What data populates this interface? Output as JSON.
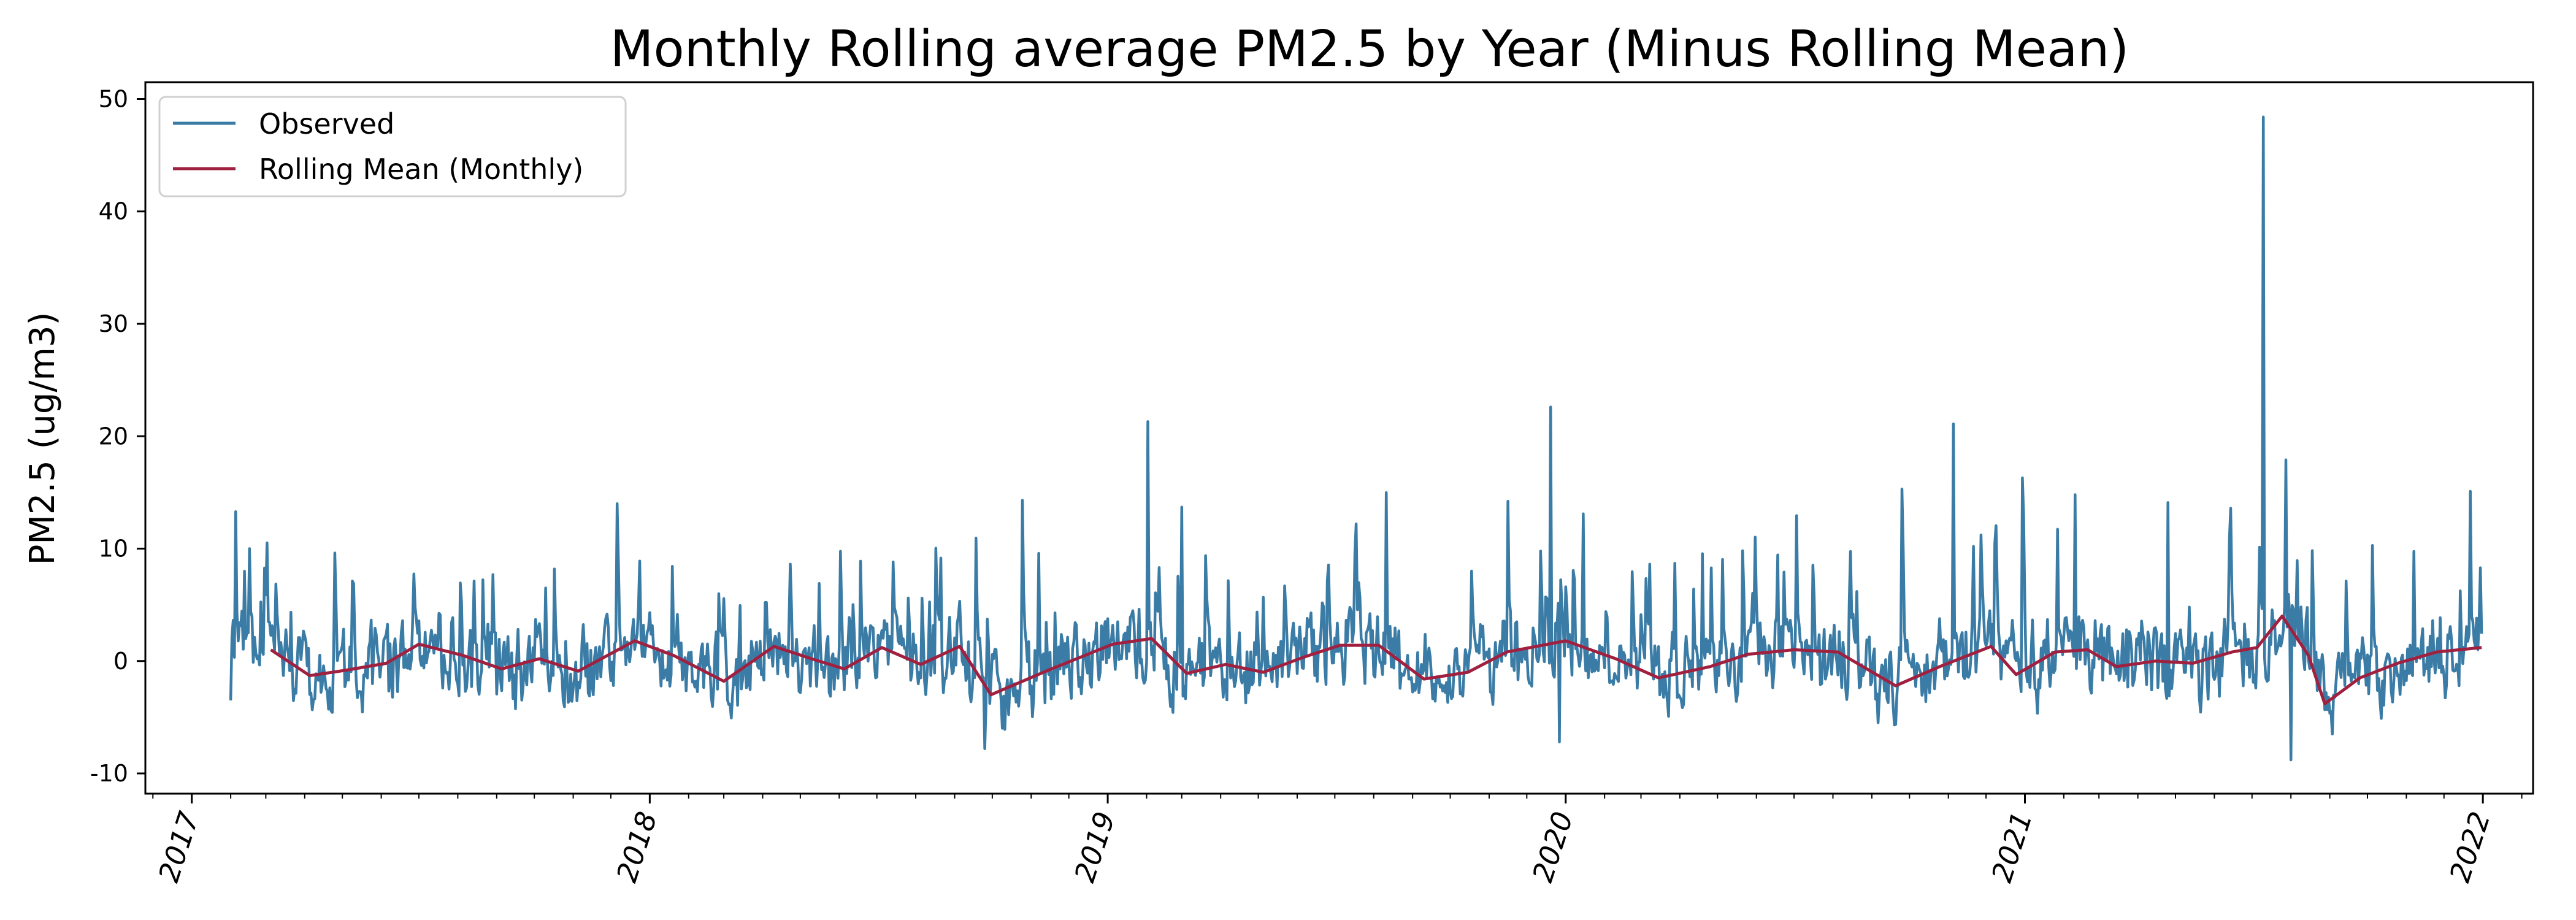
{
  "chart_data": {
    "type": "line",
    "title": "Monthly Rolling average PM2.5 by Year (Minus Rolling Mean)",
    "xlabel": "",
    "ylabel": "PM2.5 (ug/m3)",
    "x_range": [
      "2016-11-25",
      "2022-02-10"
    ],
    "ylim": [
      -11.8,
      51.5
    ],
    "x_ticks": [
      "2017",
      "2018",
      "2019",
      "2020",
      "2021",
      "2022"
    ],
    "y_ticks": [
      -10,
      0,
      10,
      20,
      30,
      40,
      50
    ],
    "grid": false,
    "legend_position": "upper-left",
    "series": [
      {
        "name": "Observed",
        "color": "#3a7ca5",
        "frequency": "daily",
        "start": "2017-02-01",
        "end": "2021-12-31",
        "peaks": [
          {
            "x": "2017-02-12",
            "y": 8
          },
          {
            "x": "2017-03-02",
            "y": 10.5
          },
          {
            "x": "2017-12-06",
            "y": 14
          },
          {
            "x": "2018-10-25",
            "y": 14.3
          },
          {
            "x": "2019-02-02",
            "y": 21.3
          },
          {
            "x": "2019-03-01",
            "y": 13.7
          },
          {
            "x": "2019-12-20",
            "y": 22.6
          },
          {
            "x": "2020-01-15",
            "y": 13.1
          },
          {
            "x": "2020-09-25",
            "y": 15.3
          },
          {
            "x": "2020-11-05",
            "y": 21.1
          },
          {
            "x": "2020-12-30",
            "y": 16.3
          },
          {
            "x": "2021-02-10",
            "y": 14.8
          },
          {
            "x": "2021-04-25",
            "y": 14.1
          },
          {
            "x": "2021-07-10",
            "y": 48.4
          },
          {
            "x": "2021-07-28",
            "y": 17.9
          },
          {
            "x": "2021-12-22",
            "y": 15.1
          },
          {
            "x": "2021-12-30",
            "y": 8.3
          }
        ],
        "troughs": [
          {
            "x": "2017-02-01",
            "y": -3.5
          },
          {
            "x": "2018-09-25",
            "y": -7.8
          },
          {
            "x": "2019-12-27",
            "y": -7.2
          },
          {
            "x": "2021-08-01",
            "y": -8.8
          }
        ]
      },
      {
        "name": "Rolling Mean (Monthly)",
        "color": "#a02040",
        "frequency": "daily (30-day rolling)",
        "points": [
          {
            "x": "2017-03-05",
            "y": 1.0
          },
          {
            "x": "2017-04-05",
            "y": -1.3
          },
          {
            "x": "2017-05-05",
            "y": -0.8
          },
          {
            "x": "2017-06-05",
            "y": -0.2
          },
          {
            "x": "2017-07-01",
            "y": 1.5
          },
          {
            "x": "2017-08-05",
            "y": 0.5
          },
          {
            "x": "2017-09-05",
            "y": -0.7
          },
          {
            "x": "2017-10-05",
            "y": 0.2
          },
          {
            "x": "2017-11-05",
            "y": -0.9
          },
          {
            "x": "2017-12-20",
            "y": 1.8
          },
          {
            "x": "2018-01-20",
            "y": 0.5
          },
          {
            "x": "2018-03-01",
            "y": -1.8
          },
          {
            "x": "2018-04-10",
            "y": 1.3
          },
          {
            "x": "2018-05-10",
            "y": 0.2
          },
          {
            "x": "2018-06-05",
            "y": -0.7
          },
          {
            "x": "2018-07-05",
            "y": 1.2
          },
          {
            "x": "2018-08-05",
            "y": -0.3
          },
          {
            "x": "2018-09-05",
            "y": 1.3
          },
          {
            "x": "2018-09-30",
            "y": -3.0
          },
          {
            "x": "2018-11-15",
            "y": -0.8
          },
          {
            "x": "2019-01-05",
            "y": 1.5
          },
          {
            "x": "2019-02-05",
            "y": 2.0
          },
          {
            "x": "2019-03-05",
            "y": -1.1
          },
          {
            "x": "2019-04-05",
            "y": -0.3
          },
          {
            "x": "2019-05-05",
            "y": -1.0
          },
          {
            "x": "2019-06-05",
            "y": 0.3
          },
          {
            "x": "2019-07-05",
            "y": 1.4
          },
          {
            "x": "2019-08-05",
            "y": 1.4
          },
          {
            "x": "2019-09-10",
            "y": -1.6
          },
          {
            "x": "2019-10-15",
            "y": -1.0
          },
          {
            "x": "2019-11-15",
            "y": 0.8
          },
          {
            "x": "2020-01-01",
            "y": 1.8
          },
          {
            "x": "2020-02-10",
            "y": 0.2
          },
          {
            "x": "2020-03-15",
            "y": -1.5
          },
          {
            "x": "2020-04-25",
            "y": -0.5
          },
          {
            "x": "2020-05-25",
            "y": 0.6
          },
          {
            "x": "2020-07-01",
            "y": 1.0
          },
          {
            "x": "2020-08-05",
            "y": 0.8
          },
          {
            "x": "2020-09-20",
            "y": -2.2
          },
          {
            "x": "2020-10-25",
            "y": -0.5
          },
          {
            "x": "2020-12-05",
            "y": 1.3
          },
          {
            "x": "2020-12-25",
            "y": -1.2
          },
          {
            "x": "2021-01-25",
            "y": 0.8
          },
          {
            "x": "2021-02-20",
            "y": 1.0
          },
          {
            "x": "2021-03-15",
            "y": -0.5
          },
          {
            "x": "2021-04-15",
            "y": 0.0
          },
          {
            "x": "2021-05-15",
            "y": -0.2
          },
          {
            "x": "2021-06-15",
            "y": 0.8
          },
          {
            "x": "2021-07-05",
            "y": 1.2
          },
          {
            "x": "2021-07-25",
            "y": 4.0
          },
          {
            "x": "2021-08-15",
            "y": 0.5
          },
          {
            "x": "2021-08-28",
            "y": -3.8
          },
          {
            "x": "2021-09-25",
            "y": -1.5
          },
          {
            "x": "2021-10-25",
            "y": -0.2
          },
          {
            "x": "2021-11-25",
            "y": 0.8
          },
          {
            "x": "2021-12-31",
            "y": 1.2
          }
        ]
      }
    ]
  }
}
